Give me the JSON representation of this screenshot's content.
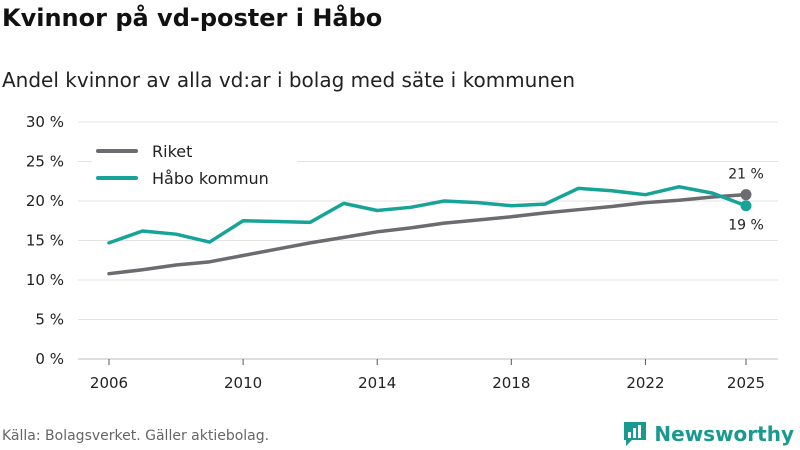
{
  "title": "Kvinnor på vd-poster i Håbo",
  "subtitle": "Andel kvinnor av alla vd:ar i bolag med säte i kommunen",
  "source": "Källa: Bolagsverket. Gäller aktiebolag.",
  "brand": {
    "name": "Newsworthy",
    "icon": "newsworthy-logo-icon"
  },
  "colors": {
    "riket": "#6b6b70",
    "habo": "#17a398",
    "grid": "#e3e3e3"
  },
  "chart_data": {
    "type": "line",
    "title": "Kvinnor på vd-poster i Håbo",
    "subtitle": "Andel kvinnor av alla vd:ar i bolag med säte i kommunen",
    "xlabel": "",
    "ylabel": "",
    "xlim": [
      2006,
      2025
    ],
    "ylim": [
      0,
      30
    ],
    "yticks": [
      0,
      5,
      10,
      15,
      20,
      25,
      30
    ],
    "ytick_labels": [
      "0 %",
      "5 %",
      "10 %",
      "15 %",
      "20 %",
      "25 %",
      "30 %"
    ],
    "xticks": [
      2006,
      2010,
      2014,
      2018,
      2022,
      2025
    ],
    "xtick_labels": [
      "2006",
      "2010",
      "2014",
      "2018",
      "2022",
      "2025"
    ],
    "x": [
      2006,
      2007,
      2008,
      2009,
      2010,
      2011,
      2012,
      2013,
      2014,
      2015,
      2016,
      2017,
      2018,
      2019,
      2020,
      2021,
      2022,
      2023,
      2024,
      2025
    ],
    "series": [
      {
        "name": "Riket",
        "values": [
          10.8,
          11.3,
          11.9,
          12.3,
          13.1,
          13.9,
          14.7,
          15.4,
          16.1,
          16.6,
          17.2,
          17.6,
          18.0,
          18.5,
          18.9,
          19.3,
          19.8,
          20.1,
          20.5,
          20.8
        ],
        "end_label": "21 %"
      },
      {
        "name": "Håbo kommun",
        "values": [
          14.7,
          16.2,
          15.8,
          14.8,
          17.5,
          17.4,
          17.3,
          19.7,
          18.8,
          19.2,
          20.0,
          19.8,
          19.4,
          19.6,
          21.6,
          21.3,
          20.8,
          21.8,
          21.0,
          19.4
        ],
        "end_label": "19 %"
      }
    ],
    "legend_position": "top-left",
    "grid": true
  }
}
